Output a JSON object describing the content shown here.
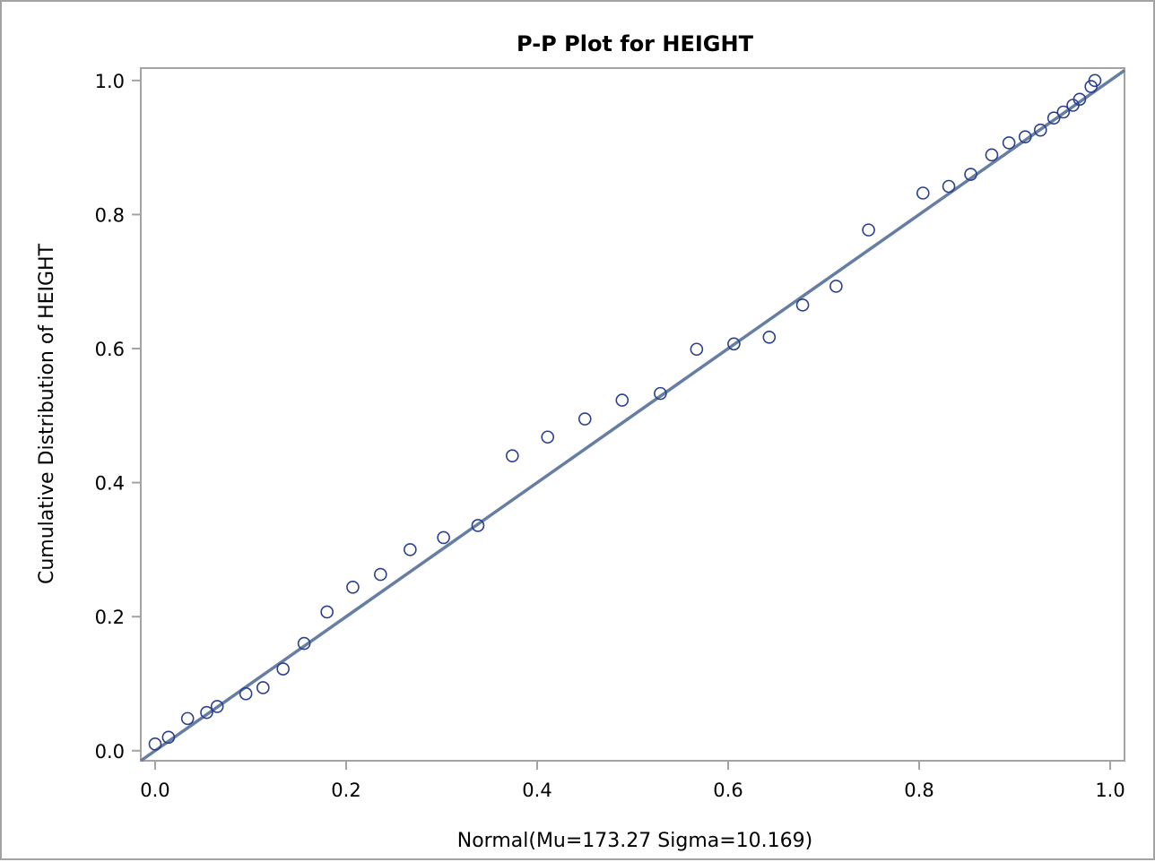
{
  "chart_data": {
    "type": "scatter",
    "title": "P-P Plot for HEIGHT",
    "xlabel": "Normal(Mu=173.27 Sigma=10.169)",
    "ylabel": "Cumulative Distribution of HEIGHT",
    "xlim": [
      -0.015,
      1.015
    ],
    "ylim": [
      -0.015,
      1.0185
    ],
    "xticks": [
      0.0,
      0.2,
      0.4,
      0.6,
      0.8,
      1.0
    ],
    "xtick_labels": [
      "0.0",
      "0.2",
      "0.4",
      "0.6",
      "0.8",
      "1.0"
    ],
    "yticks": [
      0.0,
      0.2,
      0.4,
      0.6,
      0.8,
      1.0
    ],
    "ytick_labels": [
      "0.0",
      "0.2",
      "0.4",
      "0.6",
      "0.8",
      "1.0"
    ],
    "grid": false,
    "legend": "none",
    "marker": "open-circle",
    "colors": {
      "marker": "#2b3f8f",
      "reference_line": "#667ea3",
      "axis": "#a3a3a3",
      "border": "#a3a3a3"
    },
    "reference_line": {
      "x": [
        -0.015,
        1.015
      ],
      "y": [
        -0.015,
        1.015
      ]
    },
    "series": [
      {
        "x": [
          0.0,
          0.014,
          0.034,
          0.054,
          0.065,
          0.095,
          0.113,
          0.134,
          0.156,
          0.18,
          0.207,
          0.236,
          0.267,
          0.302,
          0.338,
          0.374,
          0.411,
          0.45,
          0.489,
          0.529,
          0.567,
          0.606,
          0.643,
          0.678,
          0.713,
          0.747,
          0.804,
          0.831,
          0.854,
          0.876,
          0.894,
          0.911,
          0.927,
          0.941,
          0.951,
          0.961,
          0.968,
          0.98,
          0.984
        ],
        "y": [
          0.01,
          0.02,
          0.048,
          0.057,
          0.066,
          0.085,
          0.094,
          0.122,
          0.16,
          0.207,
          0.244,
          0.263,
          0.3,
          0.318,
          0.336,
          0.44,
          0.468,
          0.495,
          0.523,
          0.533,
          0.599,
          0.607,
          0.617,
          0.665,
          0.693,
          0.777,
          0.832,
          0.842,
          0.86,
          0.889,
          0.907,
          0.916,
          0.926,
          0.944,
          0.953,
          0.963,
          0.972,
          0.991,
          1.0
        ]
      }
    ]
  }
}
